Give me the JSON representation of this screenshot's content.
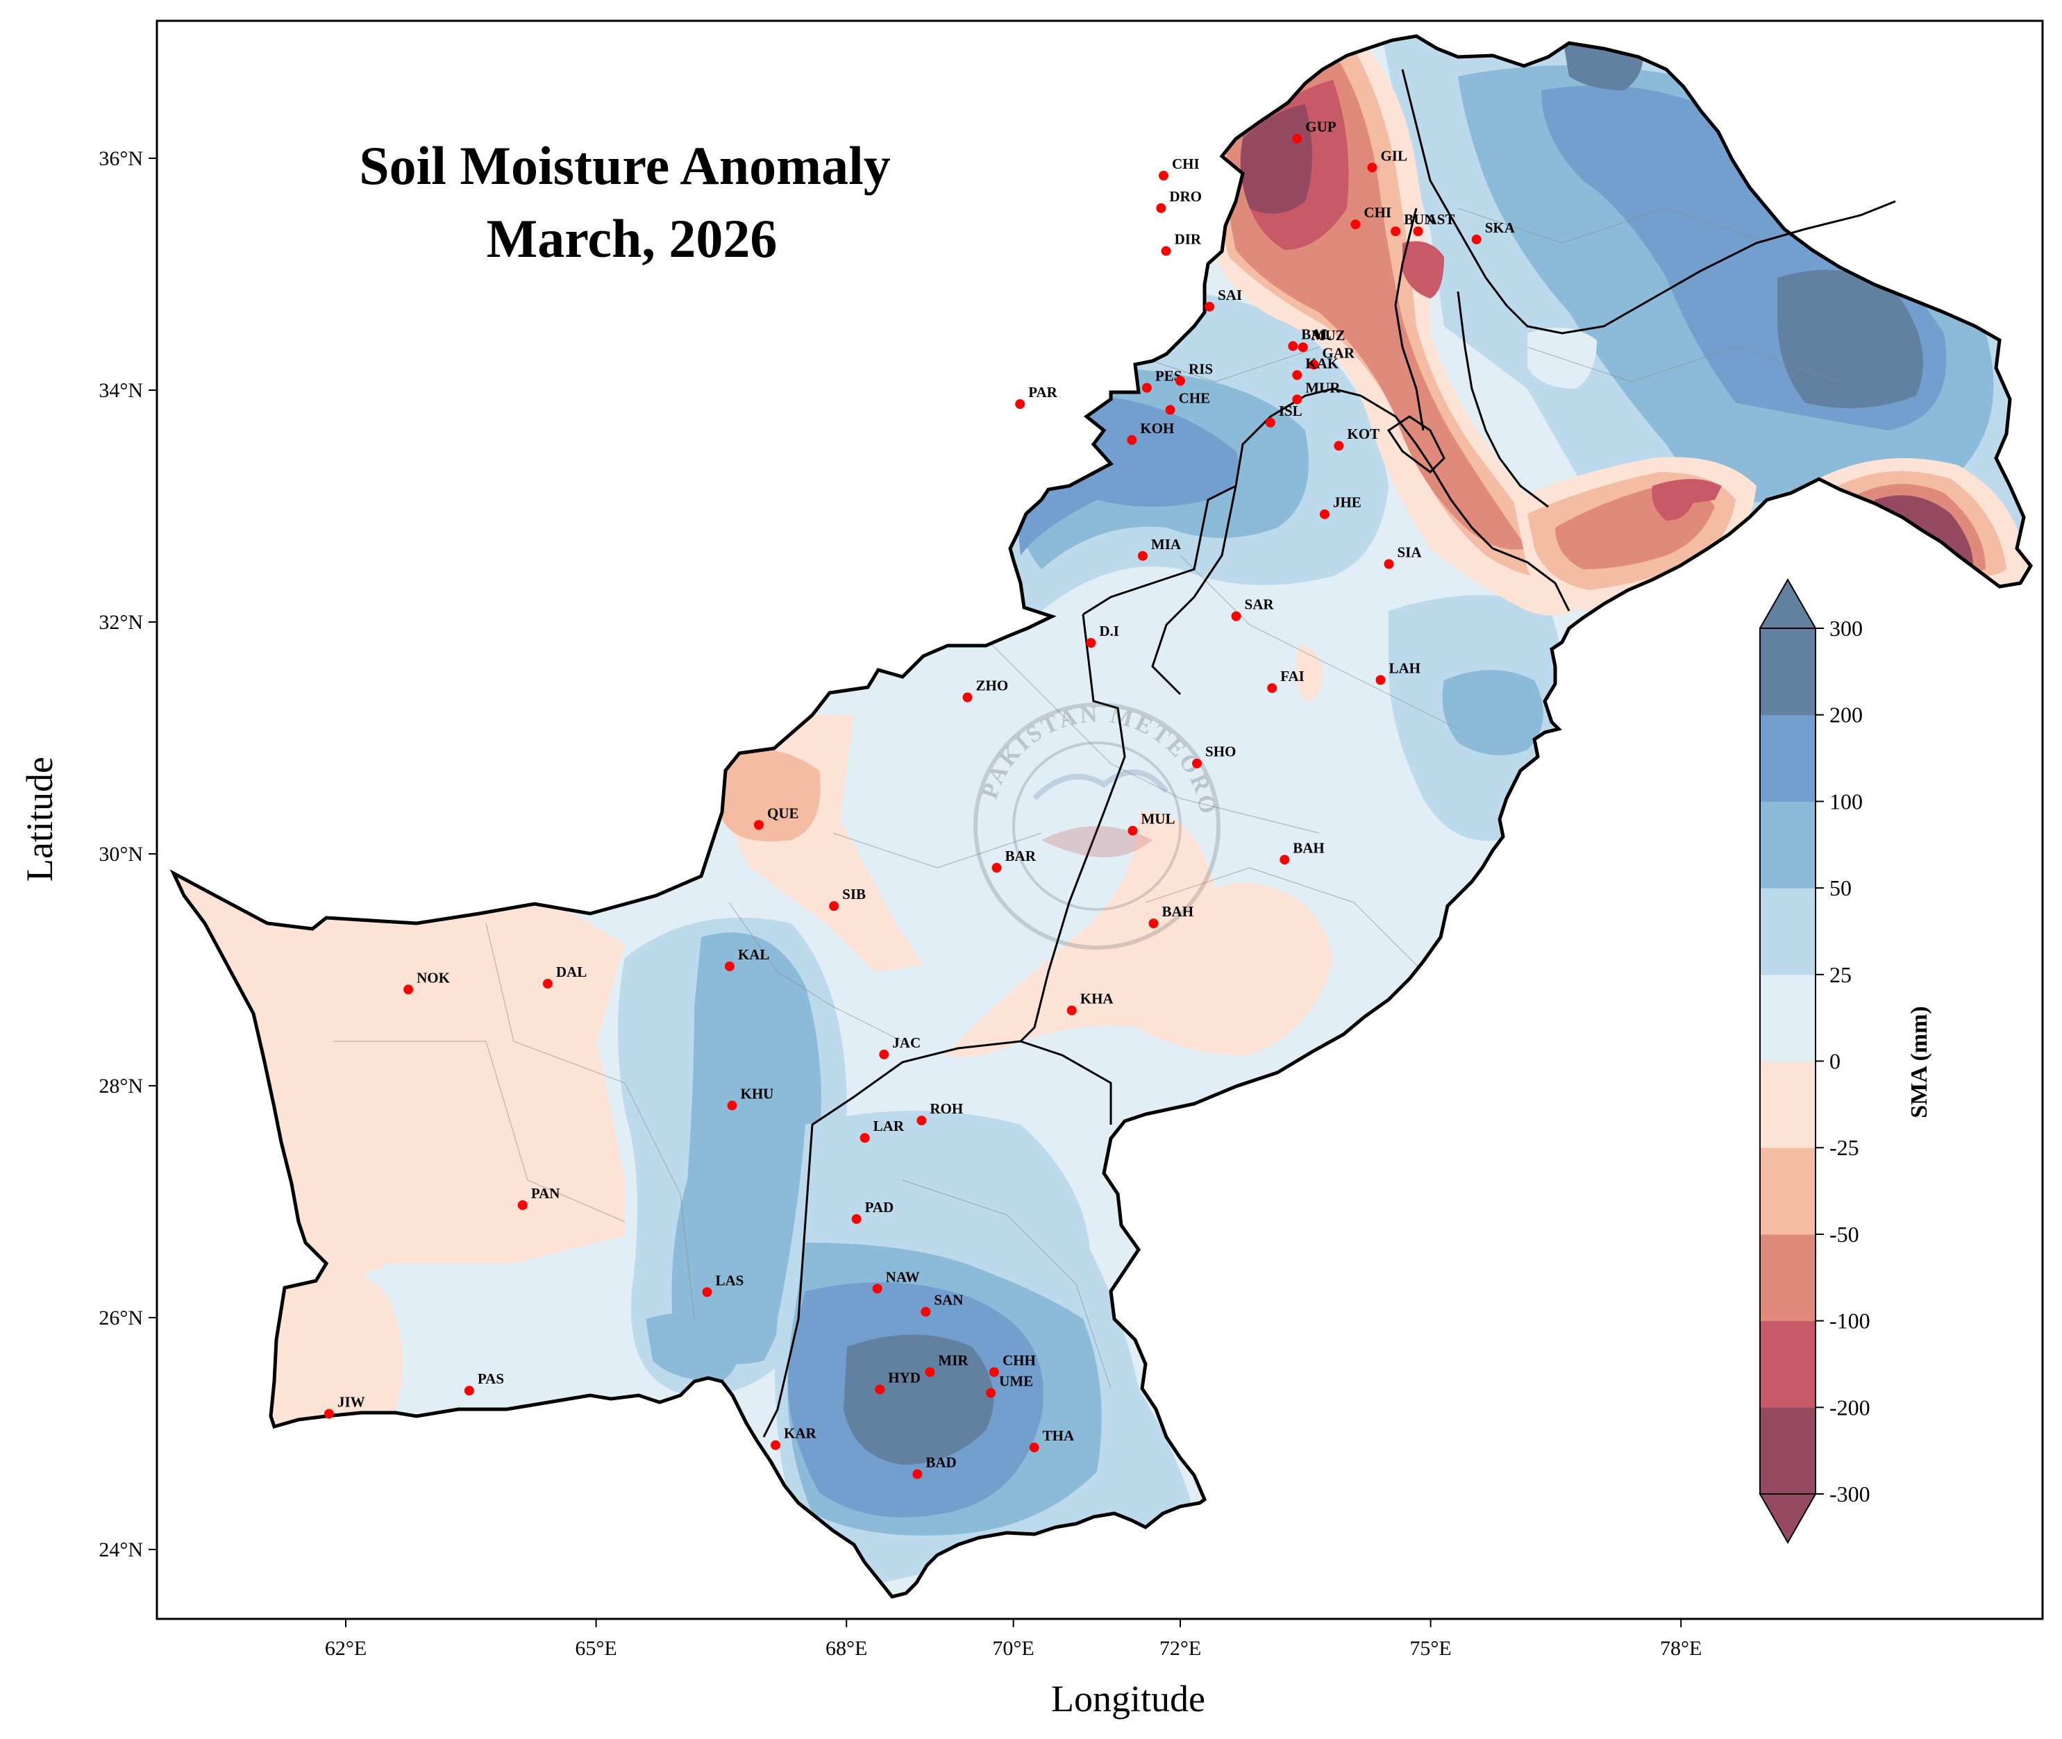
{
  "title": {
    "line1": "Soil Moisture Anomaly",
    "line2": "March, 2026"
  },
  "axes": {
    "xlabel": "Longitude",
    "ylabel": "Latitude",
    "lon_range": [
      59.5,
      80.5
    ],
    "lat_range": [
      23.4,
      37.2
    ],
    "x_ticks": [
      {
        "value": 62,
        "label": "62°E"
      },
      {
        "value": 65,
        "label": "65°E"
      },
      {
        "value": 68,
        "label": "68°E"
      },
      {
        "value": 70,
        "label": "70°E"
      },
      {
        "value": 72,
        "label": "72°E"
      },
      {
        "value": 75,
        "label": "75°E"
      },
      {
        "value": 78,
        "label": "78°E"
      }
    ],
    "y_ticks": [
      {
        "value": 24,
        "label": "24°N"
      },
      {
        "value": 26,
        "label": "26°N"
      },
      {
        "value": 28,
        "label": "28°N"
      },
      {
        "value": 30,
        "label": "30°N"
      },
      {
        "value": 32,
        "label": "32°N"
      },
      {
        "value": 34,
        "label": "34°N"
      },
      {
        "value": 36,
        "label": "36°N"
      }
    ]
  },
  "colorbar": {
    "title": "SMA (mm)",
    "levels": [
      "-300",
      "-200",
      "-100",
      "-50",
      "-25",
      "0",
      "25",
      "50",
      "100",
      "200",
      "300"
    ],
    "colors": [
      "#954a62",
      "#c85a68",
      "#df8a7a",
      "#f4bca3",
      "#fde3d6",
      "#e1eef6",
      "#bcdaeb",
      "#8bbbd9",
      "#729fcd",
      "#62809f"
    ]
  },
  "palette": {
    "dry3": "#954a62",
    "dry2": "#c85a68",
    "dry1": "#df8a7a",
    "dry0": "#f4bca3",
    "dryL": "#fde3d6",
    "wetL": "#e1eef6",
    "wet0": "#bcdaeb",
    "wet1": "#8bbbd9",
    "wet2": "#729fcd",
    "wet3": "#62809f",
    "station": "#ff0000",
    "border": "#000000"
  },
  "watermark": {
    "text": "PAKISTAN METEOROLOGICAL DEPARTMENT"
  },
  "stations": [
    {
      "code": "CHI",
      "lon": 71.8,
      "lat": 35.85
    },
    {
      "code": "DRO",
      "lon": 71.77,
      "lat": 35.57
    },
    {
      "code": "DIR",
      "lon": 71.83,
      "lat": 35.2
    },
    {
      "code": "GUP",
      "lon": 73.4,
      "lat": 36.17
    },
    {
      "code": "GIL",
      "lon": 74.3,
      "lat": 35.92
    },
    {
      "code": "CHI",
      "lon": 74.1,
      "lat": 35.43
    },
    {
      "code": "BUN",
      "lon": 74.58,
      "lat": 35.37
    },
    {
      "code": "AST",
      "lon": 74.85,
      "lat": 35.37
    },
    {
      "code": "SKA",
      "lon": 75.55,
      "lat": 35.3
    },
    {
      "code": "SAI",
      "lon": 72.35,
      "lat": 34.72
    },
    {
      "code": "BAL",
      "lon": 73.35,
      "lat": 34.38
    },
    {
      "code": "MUZ",
      "lon": 73.47,
      "lat": 34.37
    },
    {
      "code": "GAR",
      "lon": 73.6,
      "lat": 34.22
    },
    {
      "code": "KAK",
      "lon": 73.4,
      "lat": 34.13
    },
    {
      "code": "PES",
      "lon": 71.6,
      "lat": 34.02
    },
    {
      "code": "RIS",
      "lon": 72.0,
      "lat": 34.08
    },
    {
      "code": "CHE",
      "lon": 71.88,
      "lat": 33.83
    },
    {
      "code": "PAR",
      "lon": 70.08,
      "lat": 33.88
    },
    {
      "code": "ISL",
      "lon": 73.08,
      "lat": 33.72
    },
    {
      "code": "MUR",
      "lon": 73.4,
      "lat": 33.92
    },
    {
      "code": "KOT",
      "lon": 73.9,
      "lat": 33.52
    },
    {
      "code": "KOH",
      "lon": 71.42,
      "lat": 33.57
    },
    {
      "code": "JHE",
      "lon": 73.73,
      "lat": 32.93
    },
    {
      "code": "SIA",
      "lon": 74.5,
      "lat": 32.5
    },
    {
      "code": "MIA",
      "lon": 71.55,
      "lat": 32.57
    },
    {
      "code": "SAR",
      "lon": 72.67,
      "lat": 32.05
    },
    {
      "code": "D.I",
      "lon": 70.93,
      "lat": 31.82
    },
    {
      "code": "LAH",
      "lon": 74.4,
      "lat": 31.5
    },
    {
      "code": "FAI",
      "lon": 73.1,
      "lat": 31.43
    },
    {
      "code": "ZHO",
      "lon": 69.45,
      "lat": 31.35
    },
    {
      "code": "SHO",
      "lon": 72.2,
      "lat": 30.78
    },
    {
      "code": "QUE",
      "lon": 66.95,
      "lat": 30.25
    },
    {
      "code": "MUL",
      "lon": 71.43,
      "lat": 30.2
    },
    {
      "code": "BAH",
      "lon": 73.25,
      "lat": 29.95
    },
    {
      "code": "BAR",
      "lon": 69.8,
      "lat": 29.88
    },
    {
      "code": "SIB",
      "lon": 67.85,
      "lat": 29.55
    },
    {
      "code": "BAH",
      "lon": 71.68,
      "lat": 29.4
    },
    {
      "code": "KAL",
      "lon": 66.6,
      "lat": 29.03
    },
    {
      "code": "NOK",
      "lon": 62.75,
      "lat": 28.83
    },
    {
      "code": "DAL",
      "lon": 64.42,
      "lat": 28.88
    },
    {
      "code": "KHA",
      "lon": 70.7,
      "lat": 28.65
    },
    {
      "code": "JAC",
      "lon": 68.45,
      "lat": 28.27
    },
    {
      "code": "KHU",
      "lon": 66.63,
      "lat": 27.83
    },
    {
      "code": "LAR",
      "lon": 68.22,
      "lat": 27.55
    },
    {
      "code": "ROH",
      "lon": 68.9,
      "lat": 27.7
    },
    {
      "code": "PAN",
      "lon": 64.12,
      "lat": 26.97
    },
    {
      "code": "PAD",
      "lon": 68.12,
      "lat": 26.85
    },
    {
      "code": "NAW",
      "lon": 68.37,
      "lat": 26.25
    },
    {
      "code": "SAN",
      "lon": 68.95,
      "lat": 26.05
    },
    {
      "code": "LAS",
      "lon": 66.33,
      "lat": 26.22
    },
    {
      "code": "MIR",
      "lon": 69.0,
      "lat": 25.53
    },
    {
      "code": "CHH",
      "lon": 69.77,
      "lat": 25.53
    },
    {
      "code": "HYD",
      "lon": 68.4,
      "lat": 25.38
    },
    {
      "code": "UME",
      "lon": 69.73,
      "lat": 25.35
    },
    {
      "code": "PAS",
      "lon": 63.48,
      "lat": 25.37
    },
    {
      "code": "JIW",
      "lon": 61.8,
      "lat": 25.17
    },
    {
      "code": "KAR",
      "lon": 67.15,
      "lat": 24.9
    },
    {
      "code": "THA",
      "lon": 70.25,
      "lat": 24.88
    },
    {
      "code": "BAD",
      "lon": 68.85,
      "lat": 24.65
    }
  ]
}
